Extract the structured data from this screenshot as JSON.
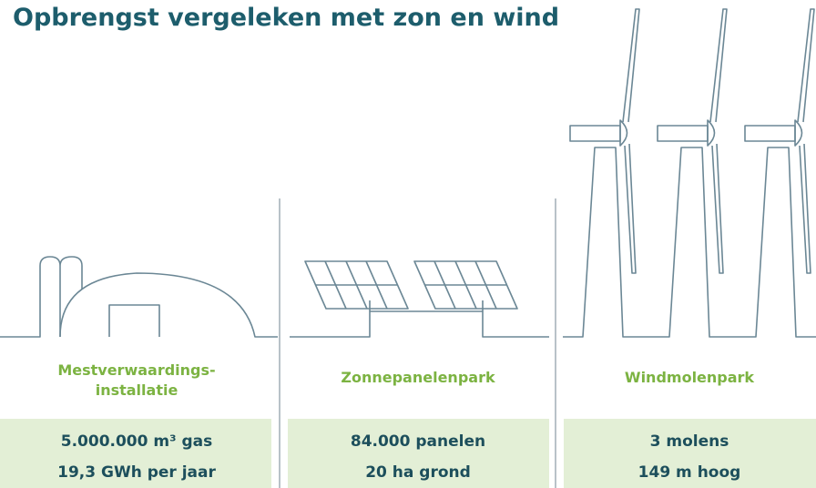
{
  "title": "Opbrengst vergeleken met zon en wind",
  "columns": [
    {
      "label_lines": [
        "Mestverwaardings-",
        "installatie"
      ],
      "stats": [
        "5.000.000 m³ gas",
        "19,3 GWh per jaar"
      ]
    },
    {
      "label_lines": [
        "Zonnepanelenpark"
      ],
      "stats": [
        "84.000 panelen",
        "20 ha grond"
      ]
    },
    {
      "label_lines": [
        "Windmolenpark"
      ],
      "stats": [
        "3 molens",
        "149 m hoog"
      ]
    }
  ]
}
